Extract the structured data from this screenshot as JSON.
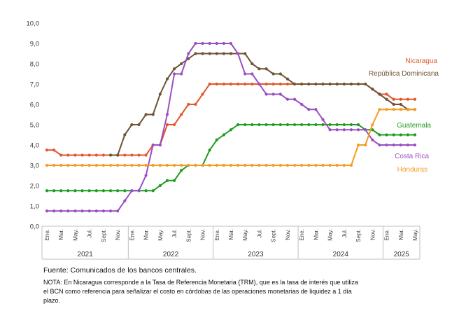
{
  "chart_data": {
    "type": "line",
    "title": "",
    "xlabel": "",
    "ylabel": "",
    "ylim": [
      0,
      10
    ],
    "yticks": [
      "0,0",
      "1,0",
      "2,0",
      "3,0",
      "4,0",
      "5,0",
      "6,0",
      "7,0",
      "8,0",
      "9,0",
      "10,0"
    ],
    "x": [
      "2021-01",
      "2021-02",
      "2021-03",
      "2021-04",
      "2021-05",
      "2021-06",
      "2021-07",
      "2021-08",
      "2021-09",
      "2021-10",
      "2021-11",
      "2021-12",
      "2022-01",
      "2022-02",
      "2022-03",
      "2022-04",
      "2022-05",
      "2022-06",
      "2022-07",
      "2022-08",
      "2022-09",
      "2022-10",
      "2022-11",
      "2022-12",
      "2023-01",
      "2023-02",
      "2023-03",
      "2023-04",
      "2023-05",
      "2023-06",
      "2023-07",
      "2023-08",
      "2023-09",
      "2023-10",
      "2023-11",
      "2023-12",
      "2024-01",
      "2024-02",
      "2024-03",
      "2024-04",
      "2024-05",
      "2024-06",
      "2024-07",
      "2024-08",
      "2024-09",
      "2024-10",
      "2024-11",
      "2024-12",
      "2025-01",
      "2025-02",
      "2025-03",
      "2025-04",
      "2025-05"
    ],
    "month_labels": [
      "Ene.",
      "Mar.",
      "May.",
      "Jul.",
      "Sept.",
      "Nov.",
      "Ene.",
      "Mar.",
      "May.",
      "Jul.",
      "Sept.",
      "Nov.",
      "Ene.",
      "Mar.",
      "May.",
      "Jul.",
      "Sept.",
      "Nov.",
      "Ene.",
      "Mar.",
      "May.",
      "Jul.",
      "Sept.",
      "Nov.",
      "Ene.",
      "Mar.",
      "May."
    ],
    "years": [
      "2021",
      "2022",
      "2023",
      "2024",
      "2025"
    ],
    "grid": false,
    "legend": "right",
    "series": [
      {
        "name": "Nicaragua",
        "color": "#e2572b",
        "values": [
          3.75,
          3.75,
          3.5,
          3.5,
          3.5,
          3.5,
          3.5,
          3.5,
          3.5,
          3.5,
          3.5,
          3.5,
          3.5,
          3.5,
          3.5,
          4.0,
          4.0,
          5.0,
          5.0,
          5.5,
          6.0,
          6.0,
          6.5,
          7.0,
          7.0,
          7.0,
          7.0,
          7.0,
          7.0,
          7.0,
          7.0,
          7.0,
          7.0,
          7.0,
          7.0,
          7.0,
          7.0,
          7.0,
          7.0,
          7.0,
          7.0,
          7.0,
          7.0,
          7.0,
          7.0,
          7.0,
          6.75,
          6.5,
          6.5,
          6.25,
          6.25,
          6.25,
          6.25
        ]
      },
      {
        "name": "República Dominicana",
        "color": "#6e5434",
        "values": [
          null,
          null,
          null,
          null,
          null,
          null,
          null,
          null,
          null,
          3.5,
          3.5,
          4.5,
          5.0,
          5.0,
          5.5,
          5.5,
          6.5,
          7.25,
          7.75,
          8.0,
          8.25,
          8.5,
          8.5,
          8.5,
          8.5,
          8.5,
          8.5,
          8.5,
          8.5,
          8.0,
          7.75,
          7.75,
          7.5,
          7.5,
          7.25,
          7.0,
          7.0,
          7.0,
          7.0,
          7.0,
          7.0,
          7.0,
          7.0,
          7.0,
          7.0,
          7.0,
          6.75,
          6.5,
          6.25,
          6.0,
          6.0,
          5.75,
          5.75
        ]
      },
      {
        "name": "Guatemala",
        "color": "#1e9c1e",
        "values": [
          1.75,
          1.75,
          1.75,
          1.75,
          1.75,
          1.75,
          1.75,
          1.75,
          1.75,
          1.75,
          1.75,
          1.75,
          1.75,
          1.75,
          1.75,
          1.75,
          2.0,
          2.25,
          2.25,
          2.75,
          3.0,
          3.0,
          3.0,
          3.75,
          4.25,
          4.5,
          4.75,
          5.0,
          5.0,
          5.0,
          5.0,
          5.0,
          5.0,
          5.0,
          5.0,
          5.0,
          5.0,
          5.0,
          5.0,
          5.0,
          5.0,
          5.0,
          5.0,
          5.0,
          5.0,
          4.75,
          4.75,
          4.5,
          4.5,
          4.5,
          4.5,
          4.5,
          4.5
        ]
      },
      {
        "name": "Costa Rica",
        "color": "#9b4fc4",
        "values": [
          0.75,
          0.75,
          0.75,
          0.75,
          0.75,
          0.75,
          0.75,
          0.75,
          0.75,
          0.75,
          0.75,
          1.25,
          1.75,
          1.75,
          2.5,
          4.0,
          4.0,
          5.5,
          7.5,
          7.5,
          8.5,
          9.0,
          9.0,
          9.0,
          9.0,
          9.0,
          9.0,
          8.5,
          7.5,
          7.5,
          7.0,
          6.5,
          6.5,
          6.5,
          6.25,
          6.25,
          6.0,
          5.75,
          5.75,
          5.25,
          4.75,
          4.75,
          4.75,
          4.75,
          4.75,
          4.75,
          4.25,
          4.0,
          4.0,
          4.0,
          4.0,
          4.0,
          4.0
        ]
      },
      {
        "name": "Honduras",
        "color": "#f49c22",
        "values": [
          3.0,
          3.0,
          3.0,
          3.0,
          3.0,
          3.0,
          3.0,
          3.0,
          3.0,
          3.0,
          3.0,
          3.0,
          3.0,
          3.0,
          3.0,
          3.0,
          3.0,
          3.0,
          3.0,
          3.0,
          3.0,
          3.0,
          3.0,
          3.0,
          3.0,
          3.0,
          3.0,
          3.0,
          3.0,
          3.0,
          3.0,
          3.0,
          3.0,
          3.0,
          3.0,
          3.0,
          3.0,
          3.0,
          3.0,
          3.0,
          3.0,
          3.0,
          3.0,
          3.0,
          4.0,
          4.0,
          5.0,
          5.75,
          5.75,
          5.75,
          5.75,
          5.75,
          5.75
        ]
      }
    ]
  },
  "source": "Fuente: Comunicados de los bancos centrales.",
  "note": "NOTA: En Nicaragua corresponde a la Tasa de Referencia Monetaria (TRM), que es la tasa de interés que utiliza el BCN como referencia para señalizar el costo en córdobas de las operaciones monetarias de liquidez a 1 día plazo."
}
